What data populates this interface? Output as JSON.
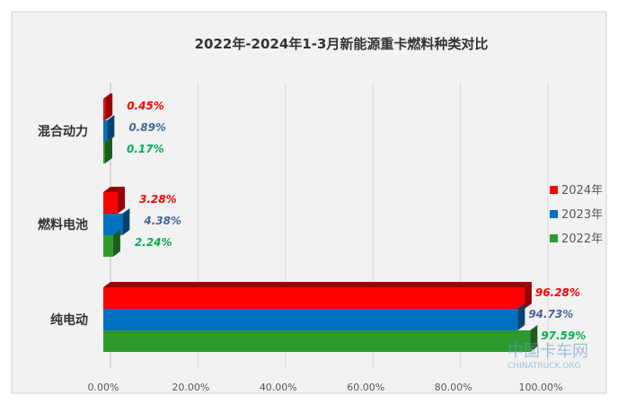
{
  "chart_data": {
    "type": "bar",
    "orientation": "horizontal",
    "title": "2022年-2024年1-3月新能源重卡燃料种类对比",
    "categories": [
      "混合动力",
      "燃料电池",
      "纯电动"
    ],
    "series": [
      {
        "name": "2024年",
        "color": "#ff0000",
        "values": [
          0.45,
          3.28,
          96.28
        ],
        "labels": [
          "0.45%",
          "3.28%",
          "96.28%"
        ]
      },
      {
        "name": "2023年",
        "color": "#0070c0",
        "values": [
          0.89,
          4.38,
          94.73
        ],
        "labels": [
          "0.89%",
          "4.38%",
          "94.73%"
        ]
      },
      {
        "name": "2022年",
        "color": "#2e9a2e",
        "values": [
          0.17,
          2.24,
          97.59
        ],
        "labels": [
          "0.17%",
          "2.24%",
          "97.59%"
        ]
      }
    ],
    "label_colors": [
      "#ff0000",
      "#44679a",
      "#00b050"
    ],
    "xlim": [
      0,
      100
    ],
    "xticks": [
      "0.00%",
      "20.00%",
      "40.00%",
      "60.00%",
      "80.00%",
      "100.00%"
    ],
    "grid": true,
    "legend": "right"
  },
  "watermark": {
    "text": "中国卡车网",
    "sub": "CHINATRUCK.ORG"
  }
}
